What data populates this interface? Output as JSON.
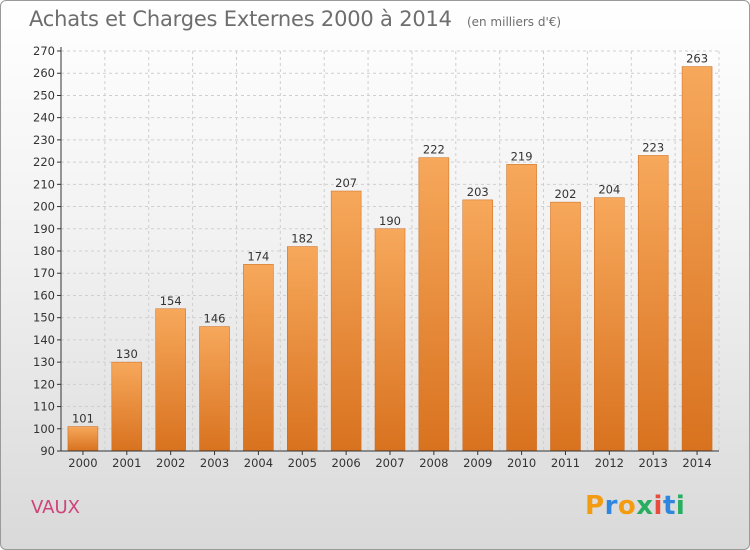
{
  "header": {
    "title": "Achats et Charges Externes 2000 à 2014",
    "subtitle": "(en milliers d'€)"
  },
  "footer": {
    "commune": "VAUX",
    "logo": {
      "text": "Proxiti",
      "letters": [
        "P",
        "r",
        "o",
        "x",
        "i",
        "t",
        "i"
      ],
      "colors": [
        "#f39c12",
        "#2e86de",
        "#f39c12",
        "#27ae60",
        "#e74c3c",
        "#2e86de",
        "#27ae60"
      ]
    }
  },
  "colors": {
    "bar_top": "#f7a85b",
    "bar_bottom": "#d8721f",
    "grid": "#cfcfcf",
    "axis": "#333333",
    "text": "#333333"
  },
  "chart_data": {
    "type": "bar",
    "categories": [
      "2000",
      "2001",
      "2002",
      "2003",
      "2004",
      "2005",
      "2006",
      "2007",
      "2008",
      "2009",
      "2010",
      "2011",
      "2012",
      "2013",
      "2014"
    ],
    "values": [
      101,
      130,
      154,
      146,
      174,
      182,
      207,
      190,
      222,
      203,
      219,
      202,
      204,
      223,
      263
    ],
    "ylim": [
      90,
      270
    ],
    "yticks": [
      90,
      100,
      110,
      120,
      130,
      140,
      150,
      160,
      170,
      180,
      190,
      200,
      210,
      220,
      230,
      240,
      250,
      260,
      270
    ],
    "grid": true,
    "title": "Achats et Charges Externes 2000 à 2014",
    "xlabel": "",
    "ylabel": ""
  }
}
